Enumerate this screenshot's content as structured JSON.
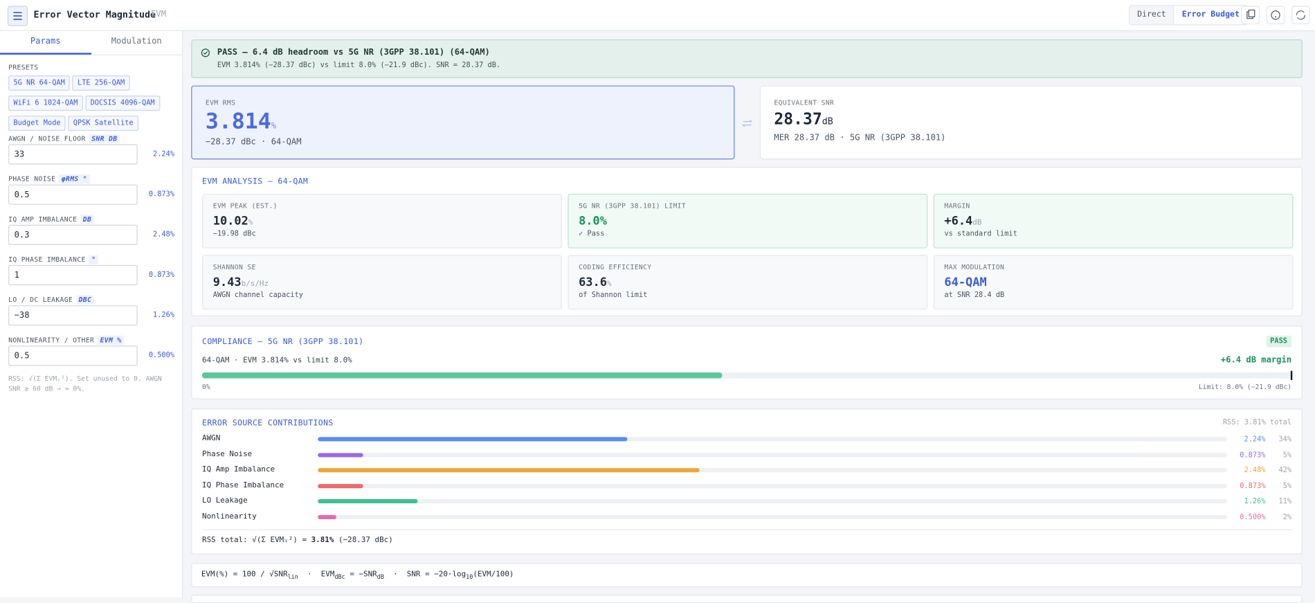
{
  "header": {
    "title": "Error Vector Magnitude",
    "subtitle": "EVM",
    "modes": [
      "Direct",
      "Error Budget"
    ]
  },
  "sidebar": {
    "tabs": [
      "Params",
      "Modulation"
    ],
    "presets_label": "PRESETS",
    "presets": [
      "5G NR 64-QAM",
      "LTE 256-QAM",
      "WiFi 6 1024-QAM",
      "DOCSIS 4096-QAM",
      "Budget Mode",
      "QPSK Satellite"
    ],
    "fields": [
      {
        "label": "AWGN / NOISE FLOOR",
        "unit": "SNR DB",
        "value": "33",
        "result": "2.24%"
      },
      {
        "label": "PHASE NOISE",
        "unit": "φRMS °",
        "value": "0.5",
        "result": "0.873%"
      },
      {
        "label": "IQ AMP IMBALANCE",
        "unit": "DB",
        "value": "0.3",
        "result": "2.48%"
      },
      {
        "label": "IQ PHASE IMBALANCE",
        "unit": "°",
        "value": "1",
        "result": "0.873%"
      },
      {
        "label": "LO / DC LEAKAGE",
        "unit": "DBC",
        "value": "−38",
        "result": "1.26%"
      },
      {
        "label": "NONLINEARITY / OTHER",
        "unit": "EVM %",
        "value": "0.5",
        "result": "0.500%"
      }
    ],
    "note": "RSS: √(Σ EVMᵢ²). Set unused to 0. AWGN SNR ≥ 60 dB → ≈ 0%."
  },
  "banner": {
    "title": "PASS — 6.4 dB headroom vs 5G NR (3GPP 38.101) (64-QAM)",
    "detail": "EVM 3.814% (−28.37 dBc) vs limit 8.0% (−21.9 dBc). SNR = 28.37 dB."
  },
  "evm_card": {
    "label": "EVM RMS",
    "value": "3.814",
    "unit": "%",
    "sub": "−28.37 dBc · 64-QAM"
  },
  "snr_card": {
    "label": "EQUIVALENT SNR",
    "value": "28.37",
    "unit": "dB",
    "sub": "MER 28.37 dB · 5G NR (3GPP 38.101)"
  },
  "analysis": {
    "title": "EVM ANALYSIS — 64-QAM",
    "cells": [
      {
        "label": "EVM PEAK (EST.)",
        "value": "10.02",
        "unit": "%",
        "sub": "−19.98 dBc"
      },
      {
        "label": "5G NR (3GPP 38.101) LIMIT",
        "value": "8.0%",
        "sub": "✓ Pass"
      },
      {
        "label": "MARGIN",
        "value": "+6.4",
        "unit": "dB",
        "sub": "vs standard limit"
      },
      {
        "label": "SHANNON SE",
        "value": "9.43",
        "unit": "b/s/Hz",
        "sub": "AWGN channel capacity"
      },
      {
        "label": "CODING EFFICIENCY",
        "value": "63.6",
        "unit": "%",
        "sub": "of Shannon limit"
      },
      {
        "label": "MAX MODULATION",
        "value": "64-QAM",
        "sub": "at SNR 28.4 dB"
      }
    ]
  },
  "compliance": {
    "title": "COMPLIANCE — 5G NR (3GPP 38.101)",
    "badge": "PASS",
    "line": "64-QAM · EVM 3.814% vs limit 8.0%",
    "margin": "+6.4 dB margin",
    "start": "0%",
    "end": "Limit: 8.0% (−21.9 dBc)",
    "fill": 3.814,
    "max": 8
  },
  "contributions": {
    "title": "ERROR SOURCE CONTRIBUTIONS",
    "total": "RSS: 3.81% total",
    "rows": [
      {
        "name": "AWGN",
        "evm": "2.24%",
        "share": 34,
        "share_label": "34%",
        "color": "#5b8def"
      },
      {
        "name": "Phase Noise",
        "evm": "0.873%",
        "share": 5,
        "share_label": "5%",
        "color": "#9b6be0"
      },
      {
        "name": "IQ Amp Imbalance",
        "evm": "2.48%",
        "share": 42,
        "share_label": "42%",
        "color": "#f0a640"
      },
      {
        "name": "IQ Phase Imbalance",
        "evm": "0.873%",
        "share": 5,
        "share_label": "5%",
        "color": "#ee6b6b"
      },
      {
        "name": "LO Leakage",
        "evm": "1.26%",
        "share": 11,
        "share_label": "11%",
        "color": "#3fbf8c"
      },
      {
        "name": "Nonlinearity",
        "evm": "0.500%",
        "share": 2,
        "share_label": "2%",
        "color": "#e86aa6"
      }
    ],
    "footer": [
      "RSS total: √(Σ EVMᵢ²) = ",
      "3.81%",
      " (−28.37 dBc)"
    ]
  },
  "formula": [
    "EVM(%) = 100 / √SNR",
    "lin",
    "  ·  EVM",
    "dBc",
    " = −SNR",
    "dB",
    "  ·  SNR = −20·log",
    "10",
    "(EVM/100)"
  ]
}
